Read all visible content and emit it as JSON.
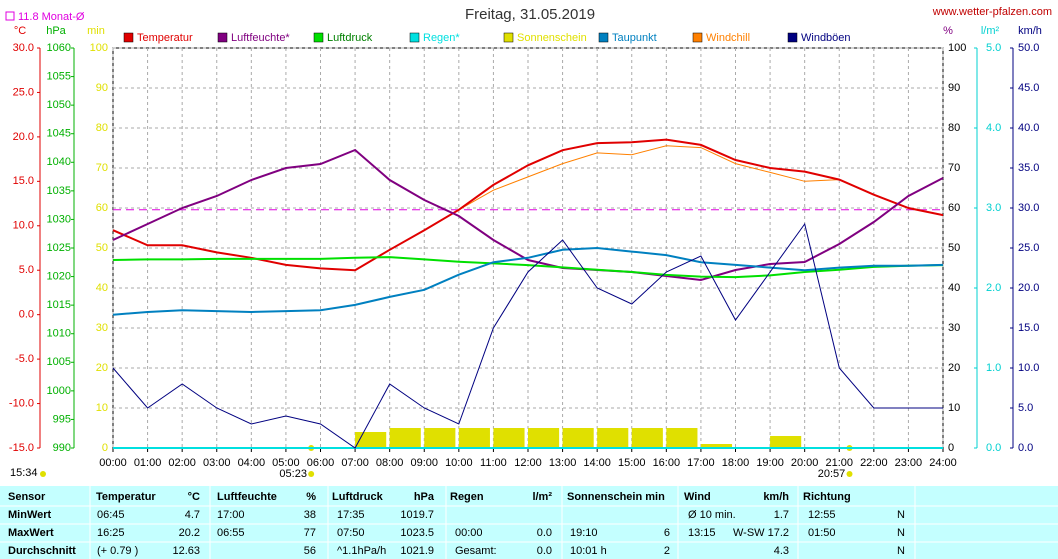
{
  "chart_data": {
    "type": "line",
    "title": "Freitag, 31.05.2019",
    "site": "www.wetter-pfalzen.com",
    "time_stamp": "15:34",
    "month_avg": {
      "value": 11.8,
      "label": "11.8 Monat-Ø"
    },
    "sunrise": {
      "value": 5.3833,
      "label": "05:23"
    },
    "sunset": {
      "value": 20.95,
      "label": "20:57"
    },
    "grid": true,
    "axes": {
      "temp": {
        "unit": "°C",
        "color": "#e00000",
        "lim": [
          -15,
          30
        ],
        "ticks": [
          {
            "value": -15,
            "label": "-15.0"
          },
          {
            "value": -10,
            "label": "-10.0"
          },
          {
            "value": -5,
            "label": "-5.0"
          },
          {
            "value": 0,
            "label": "0.0"
          },
          {
            "value": 5,
            "label": "5.0"
          },
          {
            "value": 10,
            "label": "10.0"
          },
          {
            "value": 15,
            "label": "15.0"
          },
          {
            "value": 20,
            "label": "20.0"
          },
          {
            "value": 25,
            "label": "25.0"
          },
          {
            "value": 30,
            "label": "30.0"
          }
        ]
      },
      "hpa": {
        "unit": "hPa",
        "color": "#00b000",
        "lim": [
          990,
          1060
        ],
        "ticks": [
          990,
          995,
          1000,
          1005,
          1010,
          1015,
          1020,
          1025,
          1030,
          1035,
          1040,
          1045,
          1050,
          1055,
          1060
        ]
      },
      "min": {
        "unit": "min",
        "color": "#e0e000",
        "lim": [
          0,
          100
        ],
        "ticks": [
          0,
          10,
          20,
          30,
          40,
          50,
          60,
          70,
          80,
          90,
          100
        ]
      },
      "pct": {
        "unit": "%",
        "color": "#800080",
        "lim": [
          0,
          100
        ],
        "ticks": [
          0,
          10,
          20,
          30,
          40,
          50,
          60,
          70,
          80,
          90,
          100
        ]
      },
      "rain": {
        "unit": "l/m²",
        "color": "#00d0d0",
        "lim": [
          0,
          5
        ],
        "ticks": [
          {
            "value": 0,
            "label": "0.0"
          },
          {
            "value": 1,
            "label": "1.0"
          },
          {
            "value": 2,
            "label": "2.0"
          },
          {
            "value": 3,
            "label": "3.0"
          },
          {
            "value": 4,
            "label": "4.0"
          },
          {
            "value": 5,
            "label": "5.0"
          }
        ]
      },
      "wind": {
        "unit": "km/h",
        "color": "#000080",
        "lim": [
          0,
          50
        ],
        "ticks": [
          {
            "value": 0,
            "label": "0.0"
          },
          {
            "value": 5,
            "label": "5.0"
          },
          {
            "value": 10,
            "label": "10.0"
          },
          {
            "value": 15,
            "label": "15.0"
          },
          {
            "value": 20,
            "label": "20.0"
          },
          {
            "value": 25,
            "label": "25.0"
          },
          {
            "value": 30,
            "label": "30.0"
          },
          {
            "value": 35,
            "label": "35.0"
          },
          {
            "value": 40,
            "label": "40.0"
          },
          {
            "value": 45,
            "label": "45.0"
          },
          {
            "value": 50,
            "label": "50.0"
          }
        ]
      }
    },
    "xlim": [
      0,
      24
    ],
    "xticks": [
      {
        "value": 0,
        "label": "00:00"
      },
      {
        "value": 1,
        "label": "01:00"
      },
      {
        "value": 2,
        "label": "02:00"
      },
      {
        "value": 3,
        "label": "03:00"
      },
      {
        "value": 4,
        "label": "04:00"
      },
      {
        "value": 5,
        "label": "05:00"
      },
      {
        "value": 6,
        "label": "06:00"
      },
      {
        "value": 7,
        "label": "07:00"
      },
      {
        "value": 8,
        "label": "08:00"
      },
      {
        "value": 9,
        "label": "09:00"
      },
      {
        "value": 10,
        "label": "10:00"
      },
      {
        "value": 11,
        "label": "11:00"
      },
      {
        "value": 12,
        "label": "12:00"
      },
      {
        "value": 13,
        "label": "13:00"
      },
      {
        "value": 14,
        "label": "14:00"
      },
      {
        "value": 15,
        "label": "15:00"
      },
      {
        "value": 16,
        "label": "16:00"
      },
      {
        "value": 17,
        "label": "17:00"
      },
      {
        "value": 18,
        "label": "18:00"
      },
      {
        "value": 19,
        "label": "19:00"
      },
      {
        "value": 20,
        "label": "20:00"
      },
      {
        "value": 21,
        "label": "21:00"
      },
      {
        "value": 22,
        "label": "22:00"
      },
      {
        "value": 23,
        "label": "23:00"
      },
      {
        "value": 24,
        "label": "24:00"
      }
    ],
    "x": [
      0,
      1,
      2,
      3,
      4,
      5,
      6,
      7,
      8,
      9,
      10,
      11,
      12,
      13,
      14,
      15,
      16,
      17,
      18,
      19,
      20,
      21,
      22,
      23,
      24
    ],
    "series": [
      {
        "name": "Temperatur",
        "color": "#e00000",
        "axis": "temp",
        "kind": "line",
        "values": [
          9.5,
          7.8,
          7.8,
          7.0,
          6.4,
          5.6,
          5.2,
          5.0,
          7.3,
          9.5,
          11.8,
          14.6,
          16.8,
          18.5,
          19.3,
          19.4,
          19.7,
          19.1,
          17.4,
          16.5,
          16.1,
          15.2,
          13.5,
          12.0,
          11.2
        ]
      },
      {
        "name": "Luftfeuchte*",
        "color": "#800080",
        "axis": "pct",
        "kind": "line",
        "values": [
          52,
          56,
          60,
          63,
          67,
          70,
          71,
          74.5,
          67,
          62,
          58,
          52,
          47,
          45,
          44.5,
          44,
          43,
          42,
          44.5,
          46,
          46.5,
          51,
          56.5,
          63,
          67.5
        ]
      },
      {
        "name": "Luftdruck",
        "color": "#00e000",
        "axis": "hpa",
        "kind": "line",
        "values": [
          1022.9,
          1023.0,
          1023.0,
          1023.1,
          1023.1,
          1023.1,
          1023.1,
          1023.3,
          1023.4,
          1023.0,
          1022.6,
          1022.3,
          1022.0,
          1021.6,
          1021.2,
          1020.8,
          1020.3,
          1020.0,
          1019.9,
          1020.2,
          1020.8,
          1021.2,
          1021.7,
          1021.9,
          1022.0
        ]
      },
      {
        "name": "Regen*",
        "color": "#00e0e0",
        "axis": "rain",
        "kind": "line",
        "values": [
          0,
          0,
          0,
          0,
          0,
          0,
          0,
          0,
          0,
          0,
          0,
          0,
          0,
          0,
          0,
          0,
          0,
          0,
          0,
          0,
          0,
          0,
          0,
          0,
          0
        ]
      },
      {
        "name": "Sonnenschein",
        "color": "#e0e000",
        "axis": "min",
        "kind": "bar",
        "values": [
          0,
          0,
          0,
          0,
          0,
          0,
          0,
          4,
          5,
          5,
          5,
          5,
          5,
          5,
          5,
          5,
          5,
          1,
          0,
          3,
          0,
          0,
          0,
          0,
          0
        ]
      },
      {
        "name": "Taupunkt",
        "color": "#0080c0",
        "axis": "temp",
        "kind": "line",
        "values": [
          0.0,
          0.3,
          0.5,
          0.4,
          0.3,
          0.4,
          0.5,
          1.1,
          2.0,
          2.8,
          4.5,
          5.9,
          6.4,
          7.3,
          7.5,
          7.1,
          6.7,
          5.9,
          5.6,
          5.3,
          5.0,
          5.3,
          5.5,
          5.5,
          5.6
        ]
      },
      {
        "name": "Windchill",
        "color": "#ff8000",
        "axis": "temp",
        "kind": "line",
        "values": [
          9.5,
          7.8,
          7.8,
          7.0,
          6.4,
          5.6,
          5.2,
          5.0,
          7.3,
          9.5,
          11.8,
          14.0,
          15.5,
          17.0,
          18.2,
          18.0,
          19.0,
          18.8,
          17.0,
          16.0,
          15.0,
          15.2,
          13.5,
          12.0,
          11.2
        ]
      },
      {
        "name": "Windböen",
        "color": "#000080",
        "axis": "wind",
        "kind": "line",
        "values": [
          10,
          5,
          8,
          5,
          3,
          4,
          3,
          0,
          8,
          5,
          3,
          15,
          22,
          26,
          20,
          18,
          22,
          24,
          16,
          22,
          28,
          10,
          5,
          5,
          5
        ]
      }
    ]
  },
  "table": {
    "header": [
      "Sensor",
      "Temperatur",
      "°C",
      "Luftfeuchte",
      "%",
      "Luftdruck",
      "hPa",
      "Regen",
      "l/m²",
      "Sonnenschein min",
      "Wind",
      "km/h",
      "Richtung"
    ],
    "rows": [
      {
        "label": "MinWert",
        "temp": [
          "06:45",
          "4.7"
        ],
        "hum": [
          "17:00",
          "38"
        ],
        "press": [
          "17:35",
          "1019.7"
        ],
        "rain": [],
        "sun": [],
        "wind": [
          "Ø 10 min.",
          "1.7"
        ],
        "dir": [
          "12:55",
          "N"
        ]
      },
      {
        "label": "MaxWert",
        "temp": [
          "16:25",
          "20.2"
        ],
        "hum": [
          "06:55",
          "77"
        ],
        "press": [
          "07:50",
          "1023.5"
        ],
        "rain": [
          "00:00",
          "0.0"
        ],
        "sun": [
          "19:10",
          "6"
        ],
        "wind": [
          "13:15",
          "W-SW 17.2"
        ],
        "dir": [
          "01:50",
          "N"
        ]
      },
      {
        "label": "Durchschnitt",
        "temp": [
          "(+ 0.79 )",
          "12.63"
        ],
        "hum": [
          null,
          "56"
        ],
        "press": [
          "^1.1hPa/h",
          "1021.9"
        ],
        "rain": [
          "Gesamt:",
          "0.0"
        ],
        "sun": [
          "10:01 h",
          "2"
        ],
        "wind": [
          null,
          "4.3"
        ],
        "dir": [
          null,
          "N"
        ]
      }
    ]
  }
}
